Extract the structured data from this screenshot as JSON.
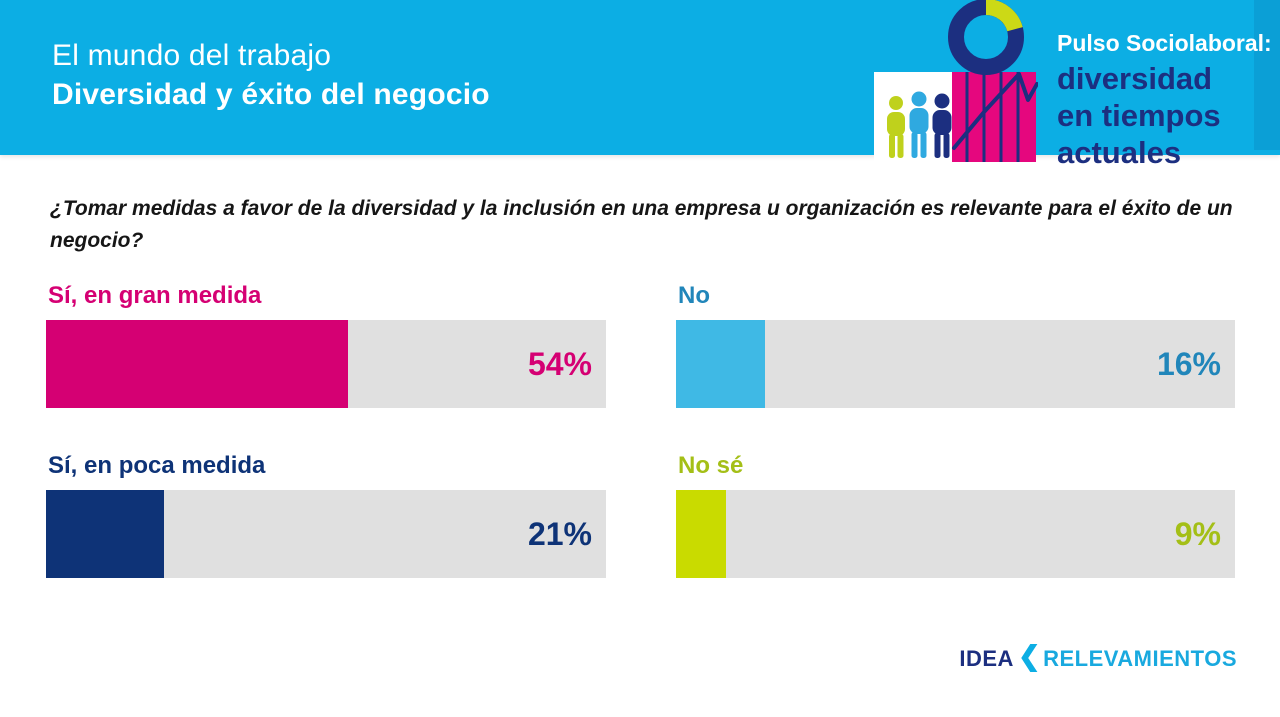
{
  "header": {
    "title_line1": "El mundo del trabajo",
    "title_line2": "Diversidad y éxito del negocio",
    "brand": {
      "line1": "Pulso Sociolaboral:",
      "line2": "diversidad",
      "line3": "en tiempos",
      "line4": "actuales"
    }
  },
  "question": "¿Tomar medidas a favor de la diversidad y la inclusión en una empresa u organización es relevante para el éxito de un negocio?",
  "chart_data": {
    "type": "bar",
    "orientation": "horizontal",
    "title": "",
    "xlabel": "",
    "ylabel": "",
    "unit": "%",
    "xlim": [
      0,
      100
    ],
    "grid": false,
    "legend": "none",
    "track_color": "#e0e0e0",
    "categories": [
      "Sí, en gran medida",
      "No",
      "Sí, en poca medida",
      "No sé"
    ],
    "values": [
      54,
      16,
      21,
      9
    ],
    "items": [
      {
        "label": "Sí, en gran medida",
        "value": 54,
        "value_label": "54%",
        "bar_color": "#d50073",
        "text_color": "#d50073"
      },
      {
        "label": "No",
        "value": 16,
        "value_label": "16%",
        "bar_color": "#3fb9e5",
        "text_color": "#2186ba"
      },
      {
        "label": "Sí, en poca medida",
        "value": 21,
        "value_label": "21%",
        "bar_color": "#0e3377",
        "text_color": "#0e3377"
      },
      {
        "label": "No sé",
        "value": 9,
        "value_label": "9%",
        "bar_color": "#c9db00",
        "text_color": "#a4bf17"
      }
    ]
  },
  "footer": {
    "logo_text_left": "idea",
    "logo_chevron": "❮",
    "logo_text_right": "relevamientos"
  },
  "palette": {
    "header_band": "#0caee4",
    "header_edge_strip": "#0b9fd6",
    "brand_navy": "#1c2f80",
    "brand_magenta": "#e5077e",
    "brand_lime": "#ccd916",
    "brand_blue": "#2fa9e0",
    "question_text": "#161616"
  }
}
